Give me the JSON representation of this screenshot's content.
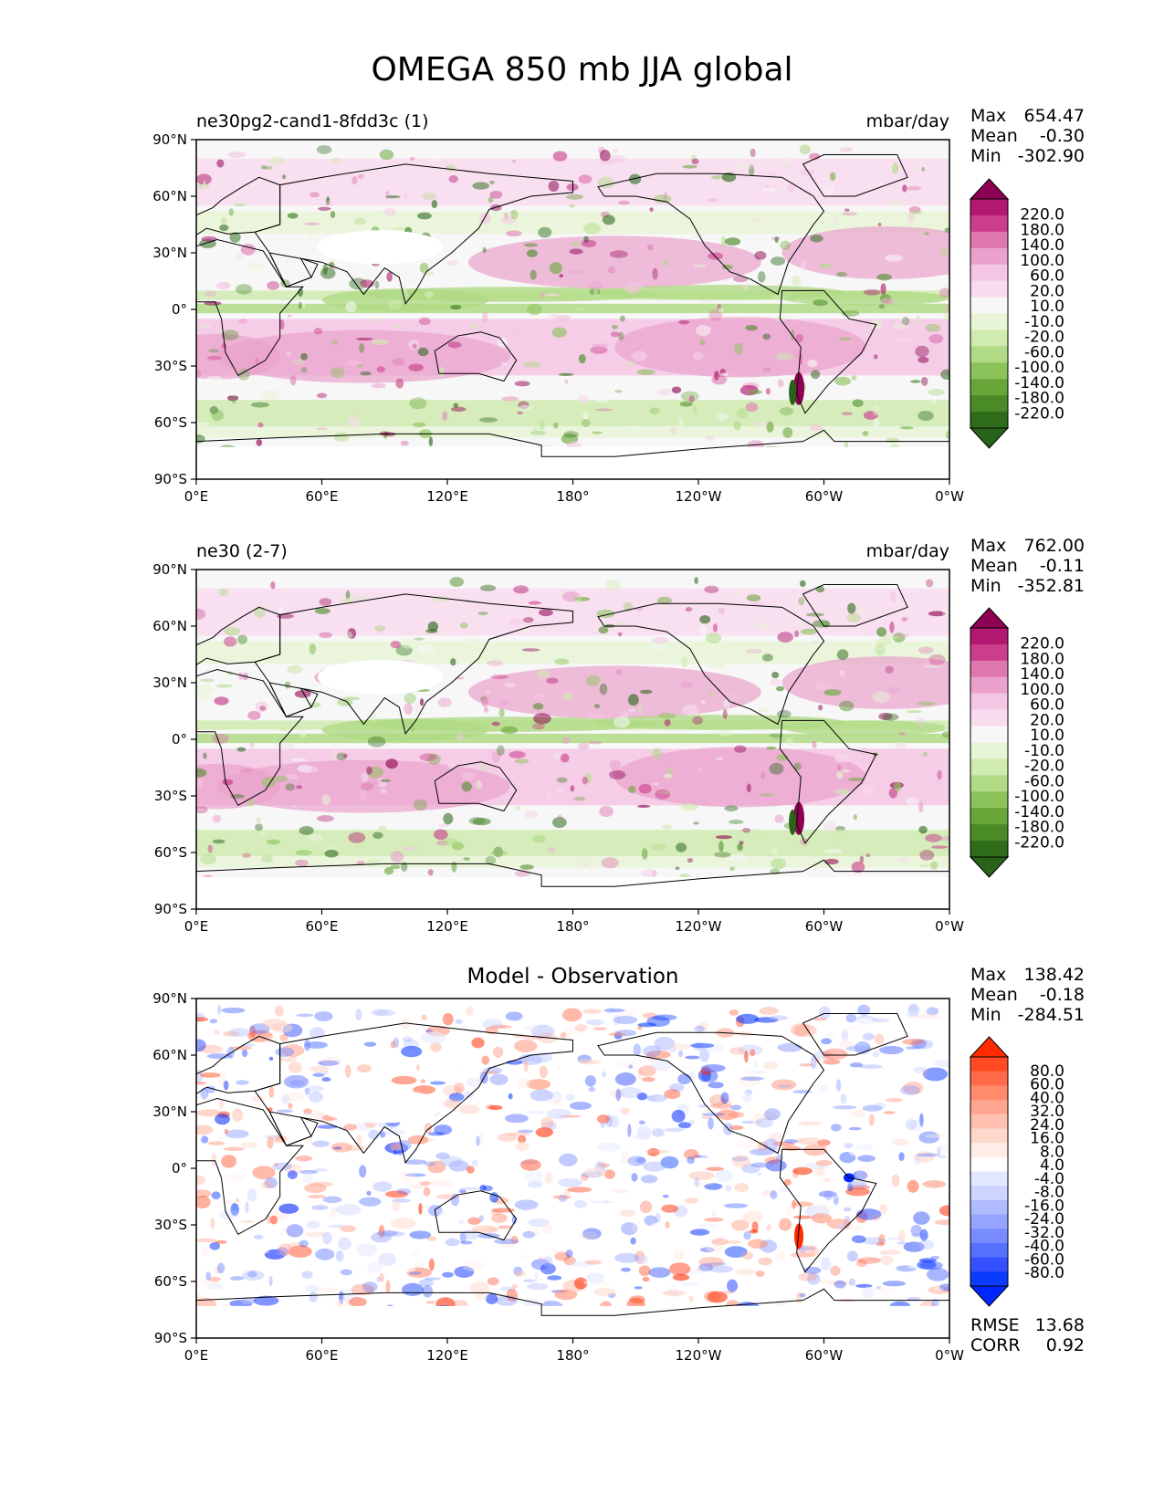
{
  "title": "OMEGA 850 mb JJA global",
  "panels": [
    {
      "id": "test",
      "title_left": "ne30pg2-cand1-8fdd3c (1)",
      "title_center": "",
      "units": "mbar/day",
      "stats": [
        {
          "label": "Max",
          "value": "654.47"
        },
        {
          "label": "Mean",
          "value": "-0.30"
        },
        {
          "label": "Min",
          "value": "-302.90"
        }
      ],
      "colorbar": {
        "labels": [
          "220.0",
          "180.0",
          "140.0",
          "100.0",
          "60.0",
          "20.0",
          "10.0",
          "-10.0",
          "-20.0",
          "-60.0",
          "-100.0",
          "-140.0",
          "-180.0",
          "-220.0"
        ],
        "colors": [
          "#8e0152",
          "#b1186f",
          "#cc3d8b",
          "#de77ae",
          "#eaa2cc",
          "#f4c6e3",
          "#f8dcee",
          "#f7f7f7",
          "#e8f4d6",
          "#d0ebb0",
          "#b0da85",
          "#8cc25a",
          "#68a63a",
          "#4a8a27",
          "#2f6c1a",
          "#276419"
        ]
      },
      "footer_stats": []
    },
    {
      "id": "reference",
      "title_left": "ne30 (2-7)",
      "title_center": "",
      "units": "mbar/day",
      "stats": [
        {
          "label": "Max",
          "value": "762.00"
        },
        {
          "label": "Mean",
          "value": "-0.11"
        },
        {
          "label": "Min",
          "value": "-352.81"
        }
      ],
      "colorbar": {
        "labels": [
          "220.0",
          "180.0",
          "140.0",
          "100.0",
          "60.0",
          "20.0",
          "10.0",
          "-10.0",
          "-20.0",
          "-60.0",
          "-100.0",
          "-140.0",
          "-180.0",
          "-220.0"
        ],
        "colors": [
          "#8e0152",
          "#b1186f",
          "#cc3d8b",
          "#de77ae",
          "#eaa2cc",
          "#f4c6e3",
          "#f8dcee",
          "#f7f7f7",
          "#e8f4d6",
          "#d0ebb0",
          "#b0da85",
          "#8cc25a",
          "#68a63a",
          "#4a8a27",
          "#2f6c1a",
          "#276419"
        ]
      },
      "footer_stats": []
    },
    {
      "id": "difference",
      "title_left": "",
      "title_center": "Model - Observation",
      "units": "",
      "stats": [
        {
          "label": "Max",
          "value": "138.42"
        },
        {
          "label": "Mean",
          "value": "-0.18"
        },
        {
          "label": "Min",
          "value": "-284.51"
        }
      ],
      "colorbar": {
        "labels": [
          "80.0",
          "60.0",
          "40.0",
          "32.0",
          "24.0",
          "16.0",
          "8.0",
          "4.0",
          "-4.0",
          "-8.0",
          "-16.0",
          "-24.0",
          "-32.0",
          "-40.0",
          "-60.0",
          "-80.0"
        ],
        "colors": [
          "#ff2a00",
          "#ff4a24",
          "#ff6a48",
          "#ff8a6c",
          "#ffa690",
          "#ffc0b0",
          "#ffd8cc",
          "#ffece6",
          "#ffffff",
          "#e4e8ff",
          "#ccd4ff",
          "#b0bcff",
          "#94a4ff",
          "#788cff",
          "#5670ff",
          "#3450ff",
          "#0a3cff",
          "#0026ff"
        ]
      },
      "footer_stats": [
        {
          "label": "RMSE",
          "value": "13.68"
        },
        {
          "label": "CORR",
          "value": "0.92"
        }
      ]
    }
  ],
  "axes": {
    "lat_ticks": [
      "90°N",
      "60°N",
      "30°N",
      "0°",
      "30°S",
      "60°S",
      "90°S"
    ],
    "lon_ticks": [
      "0°E",
      "60°E",
      "120°E",
      "180°",
      "120°W",
      "60°W",
      "0°W"
    ]
  },
  "colors": {
    "background": "#ffffff",
    "frame": "#000000",
    "coast": "#000000",
    "land_missing": "#ffffff"
  }
}
